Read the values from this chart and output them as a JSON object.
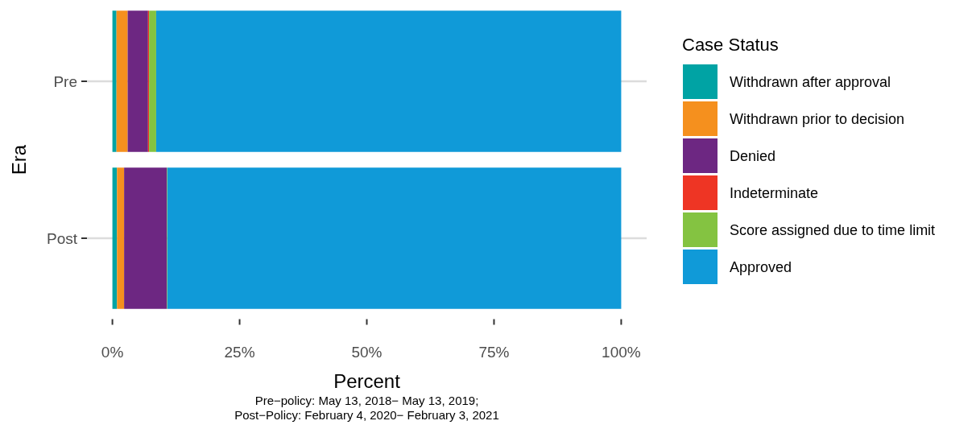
{
  "chart_data": {
    "type": "bar",
    "orientation": "horizontal",
    "stacked": true,
    "xlabel": "Percent",
    "ylabel": "Era",
    "legend_title": "Case Status",
    "categories": [
      "Pre",
      "Post"
    ],
    "series": [
      {
        "name": "Withdrawn after approval",
        "color": "#00a3a4",
        "values": [
          0.8,
          0.9
        ]
      },
      {
        "name": "Withdrawn prior to decision",
        "color": "#f5901e",
        "values": [
          2.2,
          1.4
        ]
      },
      {
        "name": "Denied",
        "color": "#6d2782",
        "values": [
          4.0,
          8.4
        ]
      },
      {
        "name": "Indeterminate",
        "color": "#ee3524",
        "values": [
          0.2,
          0
        ]
      },
      {
        "name": "Score assigned due to time limit",
        "color": "#84c341",
        "values": [
          1.4,
          0.1
        ]
      },
      {
        "name": "Approved",
        "color": "#109ad8",
        "values": [
          91.4,
          89.2
        ]
      }
    ],
    "xlim": [
      -5,
      105
    ],
    "xticks": [
      {
        "value": 0,
        "label": "0%"
      },
      {
        "value": 25,
        "label": "25%"
      },
      {
        "value": 50,
        "label": "50%"
      },
      {
        "value": 75,
        "label": "75%"
      },
      {
        "value": 100,
        "label": "100%"
      }
    ],
    "grid": "y",
    "legend": "right",
    "annotations": [
      "Pre−policy: May 13, 2018− May 13, 2019;\nPost−Policy: February 4, 2020− February 3, 2021"
    ]
  }
}
